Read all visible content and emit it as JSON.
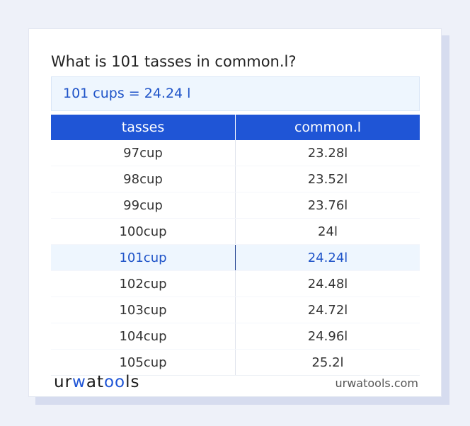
{
  "card": {
    "title": "What is 101 tasses in common.l?",
    "result": "101 cups = 24.24 l"
  },
  "table": {
    "headers": [
      "tasses",
      "common.l"
    ],
    "rows": [
      {
        "from": "97cup",
        "to": "23.28l"
      },
      {
        "from": "98cup",
        "to": "23.52l"
      },
      {
        "from": "99cup",
        "to": "23.76l"
      },
      {
        "from": "100cup",
        "to": "24l"
      },
      {
        "from": "101cup",
        "to": "24.24l"
      },
      {
        "from": "102cup",
        "to": "24.48l"
      },
      {
        "from": "103cup",
        "to": "24.72l"
      },
      {
        "from": "104cup",
        "to": "24.96l"
      },
      {
        "from": "105cup",
        "to": "25.2l"
      }
    ],
    "highlighted_row": 4
  },
  "footer": {
    "logo_parts": [
      "ur",
      "w",
      "at",
      "oo",
      "ls"
    ],
    "site": "urwatools.com"
  },
  "colors": {
    "accent": "#1f55d6",
    "highlight_bg": "#eef6fe",
    "highlight_text": "#1e53c8"
  }
}
